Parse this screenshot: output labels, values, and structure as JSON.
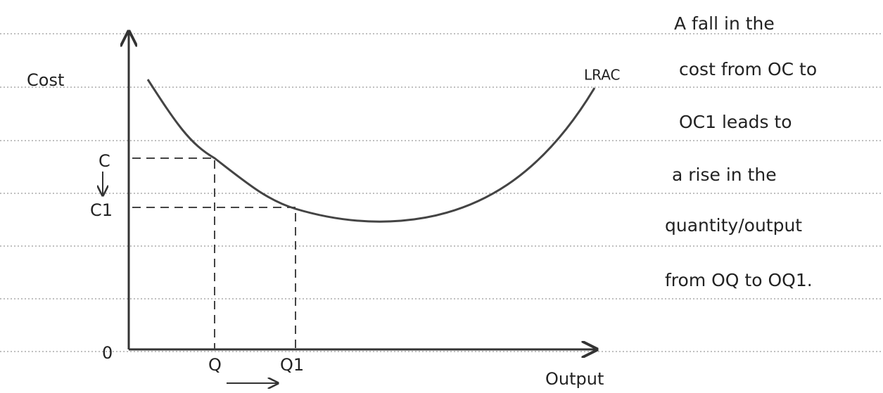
{
  "diagram": {
    "y_axis_label": "Cost",
    "x_axis_label": "Output",
    "origin_label": "0",
    "curve_label": "LRAC",
    "cost_labels": [
      "C",
      "C1"
    ],
    "output_labels": [
      "Q",
      "Q1"
    ],
    "note_lines": [
      "A fall in the",
      "cost from OC to",
      "OC1 leads to",
      "a rise in the",
      "quantity/output",
      "from OQ to OQ1."
    ]
  }
}
